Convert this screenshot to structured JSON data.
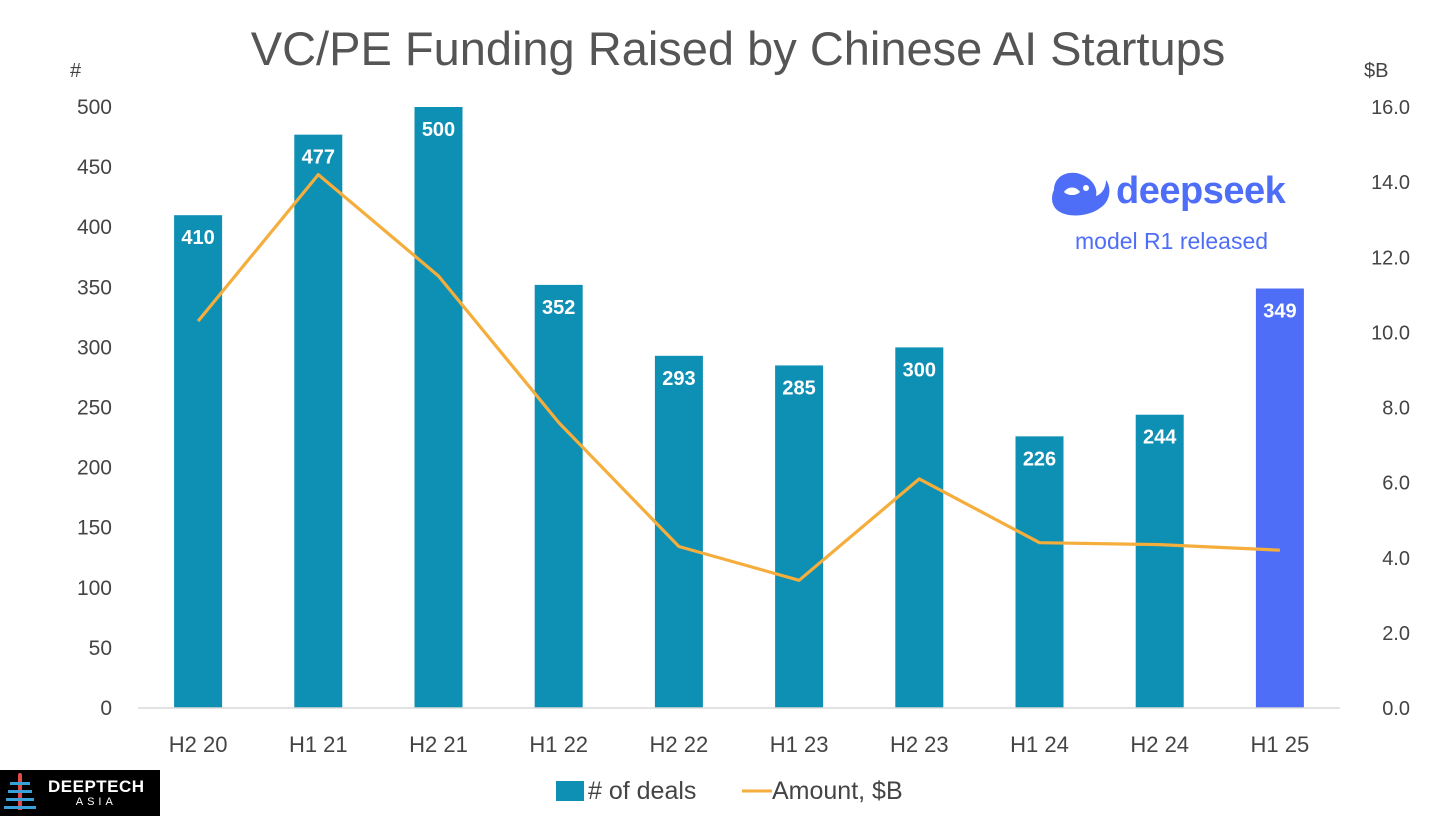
{
  "chart_data": {
    "type": "bar",
    "title": "VC/PE Funding Raised by Chinese AI Startups",
    "categories": [
      "H2 20",
      "H1 21",
      "H2 21",
      "H1 22",
      "H2 22",
      "H1 23",
      "H2 23",
      "H1 24",
      "H2 24",
      "H1 25"
    ],
    "series": [
      {
        "name": "# of deals",
        "kind": "bar",
        "axis": "left",
        "values": [
          410,
          477,
          500,
          352,
          293,
          285,
          300,
          226,
          244,
          349
        ],
        "highlight_index": 9,
        "color": "#0e8fb4",
        "highlight_color": "#4f6ef7"
      },
      {
        "name": "Amount, $B",
        "kind": "line",
        "axis": "right",
        "values": [
          10.3,
          14.2,
          11.5,
          7.6,
          4.3,
          3.4,
          6.1,
          4.4,
          4.35,
          4.2
        ],
        "color": "#f5ad3c"
      }
    ],
    "y_left": {
      "label": "#",
      "min": 0,
      "max": 500,
      "ticks": [
        "0",
        "50",
        "100",
        "150",
        "200",
        "250",
        "300",
        "350",
        "400",
        "450",
        "500"
      ]
    },
    "y_right": {
      "label": "$B",
      "min": 0,
      "max": 16,
      "ticks": [
        "0.0",
        "2.0",
        "4.0",
        "6.0",
        "8.0",
        "10.0",
        "12.0",
        "14.0",
        "16.0"
      ]
    },
    "legend": {
      "position": "bottom-center",
      "entries": [
        "# of deals",
        "Amount, $B"
      ]
    },
    "annotation": {
      "brand": "deepseek",
      "text": "model R1 released"
    }
  },
  "branding": {
    "line1": "DEEPTECH",
    "line2": "ASIA"
  }
}
